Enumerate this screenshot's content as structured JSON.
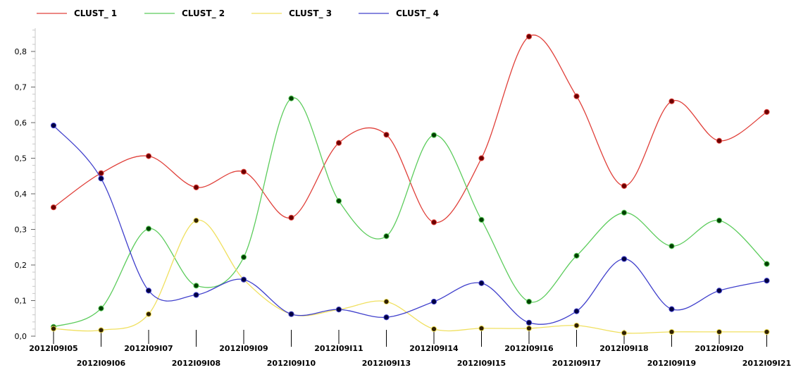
{
  "chart_data": {
    "type": "line",
    "title": "",
    "xlabel": "",
    "ylabel": "",
    "ylim": [
      0,
      0.9
    ],
    "yticks": [
      0.0,
      0.1,
      0.2,
      0.3,
      0.4,
      0.5,
      0.6,
      0.7,
      0.8
    ],
    "ytick_labels": [
      "0,0",
      "0,1",
      "0,2",
      "0,3",
      "0,4",
      "0,5",
      "0,6",
      "0,7",
      "0,8"
    ],
    "grid": false,
    "legend_position": "top-left",
    "categories": [
      "2012I09I05",
      "2012I09I06",
      "2012I09I07",
      "2012I09I08",
      "2012I09I09",
      "2012I09I10",
      "2012I09I11",
      "2012I09I13",
      "2012I09I14",
      "2012I09I15",
      "2012I09I16",
      "2012I09I17",
      "2012I09I18",
      "2012I09I19",
      "2012I09I20",
      "2012I09I21"
    ],
    "series": [
      {
        "name": "CLUST_ 1",
        "color": "#e0403a",
        "marker_color": "#6b0000",
        "values": [
          0.362,
          0.458,
          0.506,
          0.418,
          0.462,
          0.333,
          0.543,
          0.566,
          0.32,
          0.5,
          0.842,
          0.674,
          0.422,
          0.66,
          0.549,
          0.63
        ]
      },
      {
        "name": "CLUST_ 2",
        "color": "#5ccc5c",
        "marker_color": "#004000",
        "values": [
          0.026,
          0.078,
          0.302,
          0.142,
          0.222,
          0.668,
          0.38,
          0.281,
          0.565,
          0.327,
          0.097,
          0.226,
          0.347,
          0.253,
          0.325,
          0.203
        ]
      },
      {
        "name": "CLUST_ 3",
        "color": "#f0e060",
        "marker_color": "#302000",
        "values": [
          0.021,
          0.017,
          0.062,
          0.325,
          0.159,
          0.062,
          0.075,
          0.097,
          0.02,
          0.022,
          0.022,
          0.03,
          0.009,
          0.012,
          0.012,
          0.012
        ]
      },
      {
        "name": "CLUST_ 4",
        "color": "#4040cc",
        "marker_color": "#000040",
        "values": [
          0.592,
          0.443,
          0.128,
          0.116,
          0.159,
          0.062,
          0.075,
          0.053,
          0.097,
          0.149,
          0.038,
          0.07,
          0.217,
          0.076,
          0.128,
          0.156
        ]
      }
    ]
  }
}
